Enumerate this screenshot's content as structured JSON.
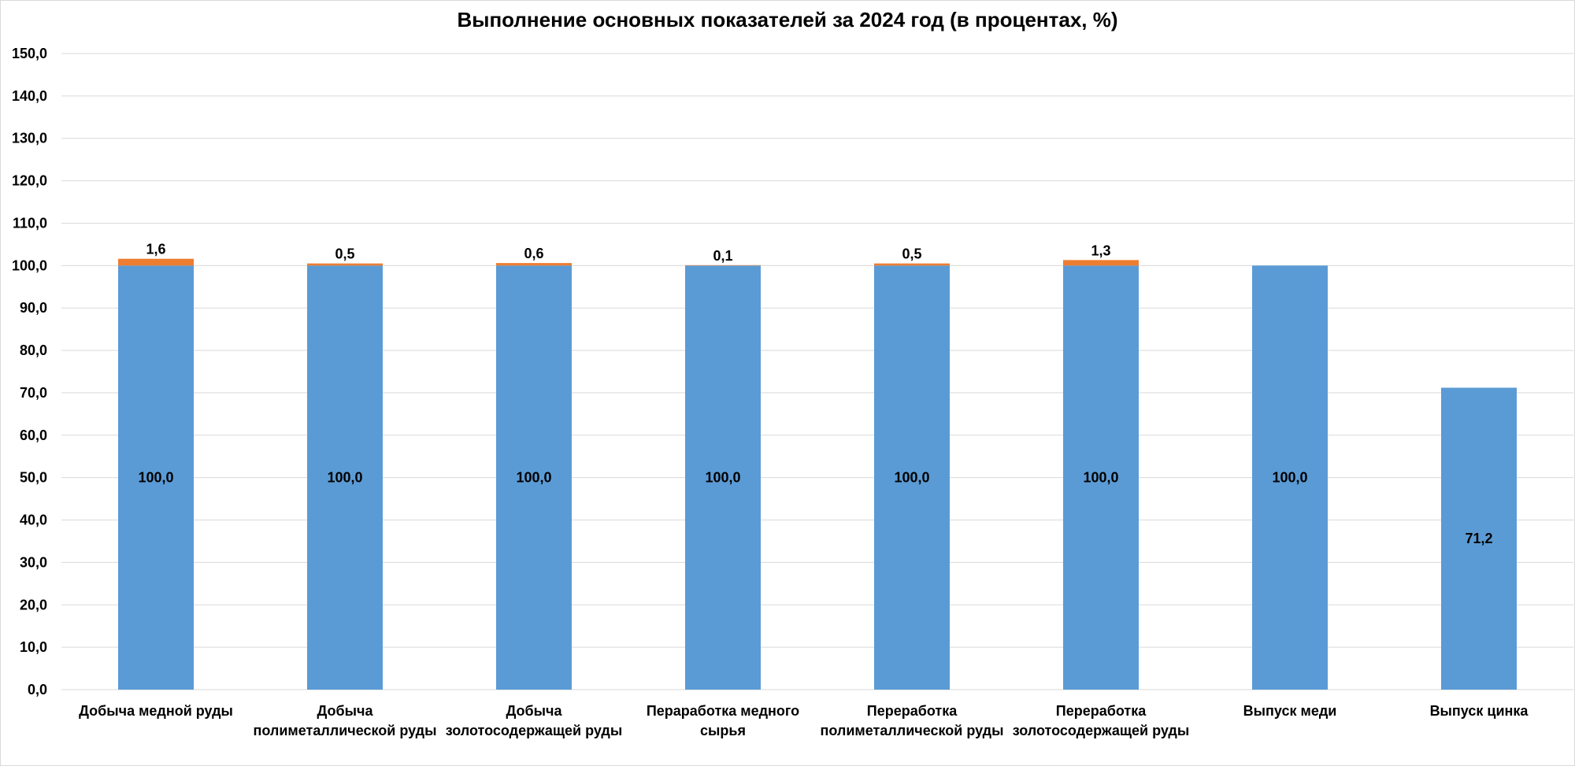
{
  "chart_data": {
    "type": "bar",
    "stacked": true,
    "title": "Выполнение основных показателей за 2024 год (в процентах, %)",
    "xlabel": "",
    "ylabel": "",
    "ylim": [
      0,
      150
    ],
    "ytick_step": 10,
    "ytick_labels": [
      "0,0",
      "10,0",
      "20,0",
      "30,0",
      "40,0",
      "50,0",
      "60,0",
      "70,0",
      "80,0",
      "90,0",
      "100,0",
      "110,0",
      "120,0",
      "130,0",
      "140,0",
      "150,0"
    ],
    "grid": true,
    "legend": "none",
    "categories": [
      [
        "Добыча медной руды"
      ],
      [
        "Добыча",
        "полиметаллической руды"
      ],
      [
        "Добыча",
        "золотосодержащей руды"
      ],
      [
        "Пераработка медного",
        "сырья"
      ],
      [
        "Переработка",
        "полиметаллической руды"
      ],
      [
        "Переработка",
        "золотосодержащей руды"
      ],
      [
        "Выпуск меди"
      ],
      [
        "Выпуск цинка"
      ]
    ],
    "series": [
      {
        "color": "#5b9bd5",
        "values": [
          100.0,
          100.0,
          100.0,
          100.0,
          100.0,
          100.0,
          100.0,
          71.2
        ],
        "labels": [
          "100,0",
          "100,0",
          "100,0",
          "100,0",
          "100,0",
          "100,0",
          "100,0",
          "71,2"
        ]
      },
      {
        "color": "#ed7d31",
        "values": [
          1.6,
          0.5,
          0.6,
          0.1,
          0.5,
          1.3,
          0,
          0
        ],
        "labels": [
          "1,6",
          "0,5",
          "0,6",
          "0,1",
          "0,5",
          "1,3",
          "",
          ""
        ]
      }
    ],
    "gridline_color": "#d9d9d9"
  }
}
